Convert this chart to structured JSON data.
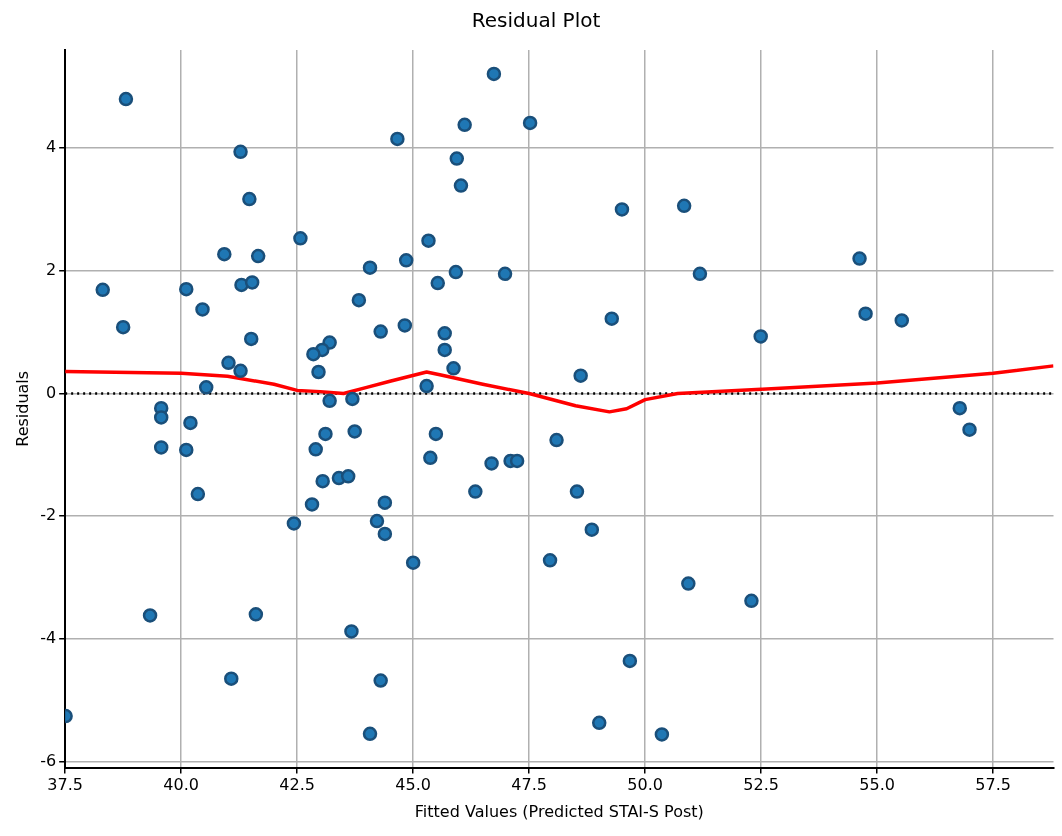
{
  "chart_data": {
    "type": "scatter",
    "title": "Residual Plot",
    "xlabel": "Fitted Values (Predicted STAI-S Post)",
    "ylabel": "Residuals",
    "xlim": [
      37.5,
      58.8
    ],
    "xticks": [
      37.5,
      {
        "value": 40,
        "label": "40.0"
      },
      42.5,
      {
        "value": 45,
        "label": "45.0"
      },
      47.5,
      {
        "value": 50,
        "label": "50.0"
      },
      52.5,
      {
        "value": 55,
        "label": "55.0"
      },
      57.5
    ],
    "ylim": [
      -6.1,
      5.6
    ],
    "yticks": [
      -6,
      -4,
      -2,
      0,
      2,
      4
    ],
    "grid": true,
    "legend": false,
    "marker": "circle",
    "ref_lines": [
      {
        "axis": "y",
        "value": 0,
        "color": "#000000",
        "line_style": "dotted"
      }
    ],
    "series": [
      {
        "color": "#1f77b4",
        "x": [
          38.81,
          41.28,
          41.47,
          42.57,
          40.93,
          41.66,
          44.07,
          38.31,
          40.11,
          41.3,
          41.53,
          40.46,
          43.83,
          38.75,
          44.3,
          41.51,
          43.2,
          43.04,
          42.85,
          41.02,
          41.28,
          42.96,
          40.54,
          43.2,
          43.69,
          39.57,
          46.74,
          46.11,
          47.52,
          44.66,
          45.94,
          46.03,
          49.5,
          50.84,
          45.33,
          44.85,
          45.92,
          46.98,
          51.18,
          45.53,
          49.28,
          44.82,
          45.68,
          45.68,
          45.87,
          48.61,
          45.29,
          54.62,
          54.75,
          55.53,
          52.49,
          56.78,
          39.57,
          40.2,
          39.57,
          40.11,
          40.36,
          39.33,
          41.61,
          41.08,
          37.51,
          43.74,
          43.11,
          42.9,
          43.05,
          43.4,
          43.6,
          42.82,
          42.43,
          44.39,
          44.22,
          44.39,
          43.67,
          44.3,
          44.07,
          45.49,
          45.37,
          46.69,
          47.1,
          47.24,
          46.34,
          48.09,
          48.53,
          48.85,
          45.0,
          47.95,
          50.93,
          49.67,
          49.01,
          50.36,
          56.99,
          52.29
        ],
        "values": [
          4.8,
          3.94,
          3.17,
          2.53,
          2.27,
          2.24,
          2.05,
          1.69,
          1.7,
          1.77,
          1.81,
          1.37,
          1.52,
          1.08,
          1.01,
          0.89,
          0.83,
          0.71,
          0.64,
          0.5,
          0.37,
          0.35,
          0.1,
          -0.12,
          -0.09,
          -0.24,
          5.21,
          4.38,
          4.41,
          4.15,
          3.83,
          3.39,
          3.0,
          3.06,
          2.49,
          2.17,
          1.98,
          1.95,
          1.95,
          1.8,
          1.22,
          1.11,
          0.98,
          0.71,
          0.41,
          0.29,
          0.12,
          2.2,
          1.3,
          1.19,
          0.93,
          -0.24,
          -0.39,
          -0.48,
          -0.88,
          -0.92,
          -1.64,
          -3.62,
          -3.6,
          -4.65,
          -5.26,
          -0.62,
          -0.66,
          -0.91,
          -1.43,
          -1.38,
          -1.35,
          -1.81,
          -2.12,
          -1.78,
          -2.08,
          -2.29,
          -3.88,
          -4.68,
          -5.55,
          -0.66,
          -1.05,
          -1.14,
          -1.1,
          -1.1,
          -1.6,
          -0.76,
          -1.6,
          -2.22,
          -2.76,
          -2.72,
          -3.1,
          -4.36,
          -5.37,
          -5.56,
          -0.59,
          -3.38
        ]
      },
      {
        "type": "line",
        "color": "#ff0000",
        "marker": "none",
        "line_style": "solid",
        "x": [
          37.5,
          40.0,
          41.0,
          42.0,
          42.5,
          43.0,
          43.5,
          44.0,
          44.5,
          45.29,
          45.6,
          46.5,
          47.5,
          48.5,
          49.23,
          49.6,
          50.0,
          50.7,
          52.5,
          55.0,
          57.5,
          58.8
        ],
        "values": [
          0.36,
          0.33,
          0.28,
          0.15,
          0.05,
          0.03,
          0.0,
          0.1,
          0.2,
          0.35,
          0.3,
          0.15,
          0.0,
          -0.2,
          -0.3,
          -0.25,
          -0.1,
          0.0,
          0.07,
          0.17,
          0.33,
          0.45
        ]
      }
    ]
  }
}
